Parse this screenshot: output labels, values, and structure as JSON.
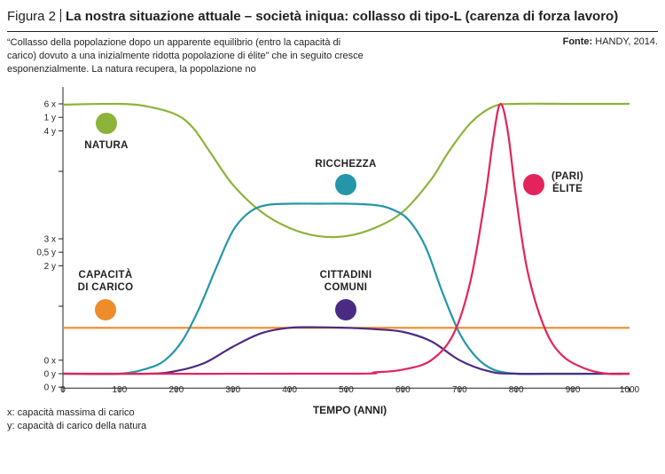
{
  "header": {
    "figure_label": "Figura 2",
    "title": "La nostra situazione attuale – società iniqua: collasso di tipo-L (carenza di forza lavoro)"
  },
  "subtitle_lines": [
    "“Collasso della popolazione dopo un apparente equilibrio (entro la capacità di",
    "carico) dovuto a una inizialmente ridotta popolazione di élite” che in seguito cresce",
    "esponenzialmente. La natura recupera, la popolazione no"
  ],
  "source": {
    "label": "Fonte:",
    "text": " HANDY, 2014."
  },
  "footnotes": {
    "x": "x: capacità massima di carico",
    "y: capacità di carico della natura": "",
    "y": "y: capacità di carico della natura"
  },
  "chart_data": {
    "type": "line",
    "xlabel": "TEMPO (ANNI)",
    "xlim": [
      0,
      1000
    ],
    "ylim": [
      0,
      1
    ],
    "x_ticks": [
      0,
      100,
      200,
      300,
      400,
      500,
      600,
      700,
      800,
      900,
      1000
    ],
    "y_tick_labels": [
      {
        "v": 1.0,
        "text": "6 x"
      },
      {
        "v": 0.95,
        "text": "1 y"
      },
      {
        "v": 0.9,
        "text": "4 y"
      },
      {
        "v": 0.5,
        "text": "3 x"
      },
      {
        "v": 0.45,
        "text": "0,5 y"
      },
      {
        "v": 0.4,
        "text": "2 y"
      },
      {
        "v": 0.05,
        "text": "0 x"
      },
      {
        "v": 0.0,
        "text": "0 y"
      },
      {
        "v": -0.05,
        "text": "0 y"
      }
    ],
    "y_minor_ticks": [
      0.75,
      0.25
    ],
    "series": [
      {
        "name": "NATURA",
        "label_lines": [
          "NATURA"
        ],
        "color": "#8db33a",
        "x": [
          0,
          100,
          150,
          200,
          230,
          260,
          300,
          350,
          400,
          450,
          500,
          550,
          600,
          650,
          680,
          720,
          760,
          800,
          900,
          1000
        ],
        "y": [
          0.997,
          1.0,
          0.99,
          0.96,
          0.91,
          0.82,
          0.7,
          0.6,
          0.54,
          0.51,
          0.51,
          0.54,
          0.6,
          0.72,
          0.82,
          0.93,
          0.99,
          1.0,
          1.0,
          1.0
        ]
      },
      {
        "name": "RICCHEZZA",
        "label_lines": [
          "RICCHEZZA"
        ],
        "color": "#2596a8",
        "x": [
          0,
          100,
          150,
          180,
          210,
          240,
          270,
          300,
          330,
          360,
          400,
          450,
          500,
          550,
          580,
          610,
          640,
          670,
          700,
          730,
          760,
          800,
          850,
          1000
        ],
        "y": [
          0.0,
          0.0,
          0.02,
          0.05,
          0.12,
          0.24,
          0.39,
          0.53,
          0.6,
          0.625,
          0.63,
          0.63,
          0.63,
          0.625,
          0.61,
          0.57,
          0.47,
          0.3,
          0.15,
          0.06,
          0.015,
          0.0,
          0.0,
          0.0
        ]
      },
      {
        "name": "CAPACITÀ DI CARICO",
        "label_lines": [
          "CAPACITÀ",
          "DI CARICO"
        ],
        "color": "#ee8b2a",
        "x": [
          0,
          1000
        ],
        "y": [
          0.17,
          0.17
        ]
      },
      {
        "name": "CITTADINI COMUNI",
        "label_lines": [
          "CITTADINI",
          "COMUNI"
        ],
        "color": "#4a2b82",
        "x": [
          0,
          150,
          200,
          250,
          300,
          350,
          400,
          450,
          500,
          550,
          600,
          650,
          700,
          750,
          800,
          1000
        ],
        "y": [
          0.0,
          0.0,
          0.01,
          0.04,
          0.1,
          0.15,
          0.17,
          0.172,
          0.17,
          0.165,
          0.155,
          0.12,
          0.05,
          0.01,
          0.0,
          0.0
        ]
      },
      {
        "name": "(PARI) ÉLITE",
        "label_lines": [
          "(PARI)",
          "ÉLITE"
        ],
        "color": "#e3245b",
        "x": [
          0,
          500,
          550,
          600,
          650,
          690,
          720,
          745,
          760,
          772,
          785,
          800,
          820,
          850,
          880,
          920,
          960,
          1000
        ],
        "y": [
          0.0,
          0.0,
          0.005,
          0.015,
          0.05,
          0.15,
          0.35,
          0.65,
          0.88,
          1.0,
          0.9,
          0.65,
          0.38,
          0.17,
          0.07,
          0.02,
          0.0,
          0.0
        ]
      }
    ]
  }
}
